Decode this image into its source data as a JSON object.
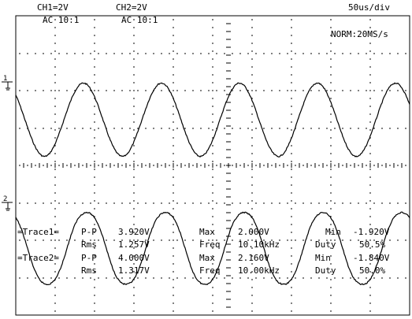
{
  "header": {
    "ch1_scale": "CH1=2V",
    "ch1_coupling": "AC 10:1",
    "ch2_scale": "CH2=2V",
    "ch2_coupling": "AC 10:1",
    "timebase": "50us/div",
    "acquisition": "NORM:20MS/s"
  },
  "markers": {
    "ch1": "1",
    "ch2": "2"
  },
  "measurements": {
    "trace1": {
      "label": "=Trace1=",
      "pp_label": "P-P",
      "pp": "3.920V",
      "max_label": "Max",
      "max": "2.000V",
      "min_label": "Min",
      "min": "-1.920V",
      "rms_label": "Rms",
      "rms": "1.257V",
      "freq_label": "Freq",
      "freq": "10.10kHz",
      "duty_label": "Duty",
      "duty": "50.5%"
    },
    "trace2": {
      "label": "=Trace2=",
      "pp_label": "P-P",
      "pp": "4.000V",
      "max_label": "Max",
      "max": "2.160V",
      "min_label": "Min",
      "min": "-1.840V",
      "rms_label": "Rms",
      "rms": "1.317V",
      "freq_label": "Freq",
      "freq": "10.00kHz",
      "duty_label": "Duty",
      "duty": "50.0%"
    }
  },
  "chart_data": {
    "type": "line",
    "time_per_division_us": 50,
    "divisions_x": 10,
    "volts_per_division": 2,
    "series": [
      {
        "frequency_khz": 10.1,
        "max_v": 2.0,
        "min_v": -1.92,
        "duty_percent": 50.5,
        "ground_level_div_from_top": 2.8,
        "color": "#000000"
      },
      {
        "frequency_khz": 10.0,
        "max_v": 2.16,
        "min_v": -1.84,
        "duty_percent": 50.0,
        "ground_level_div_from_top": 6.3,
        "color": "#000000"
      }
    ],
    "grid": true
  }
}
